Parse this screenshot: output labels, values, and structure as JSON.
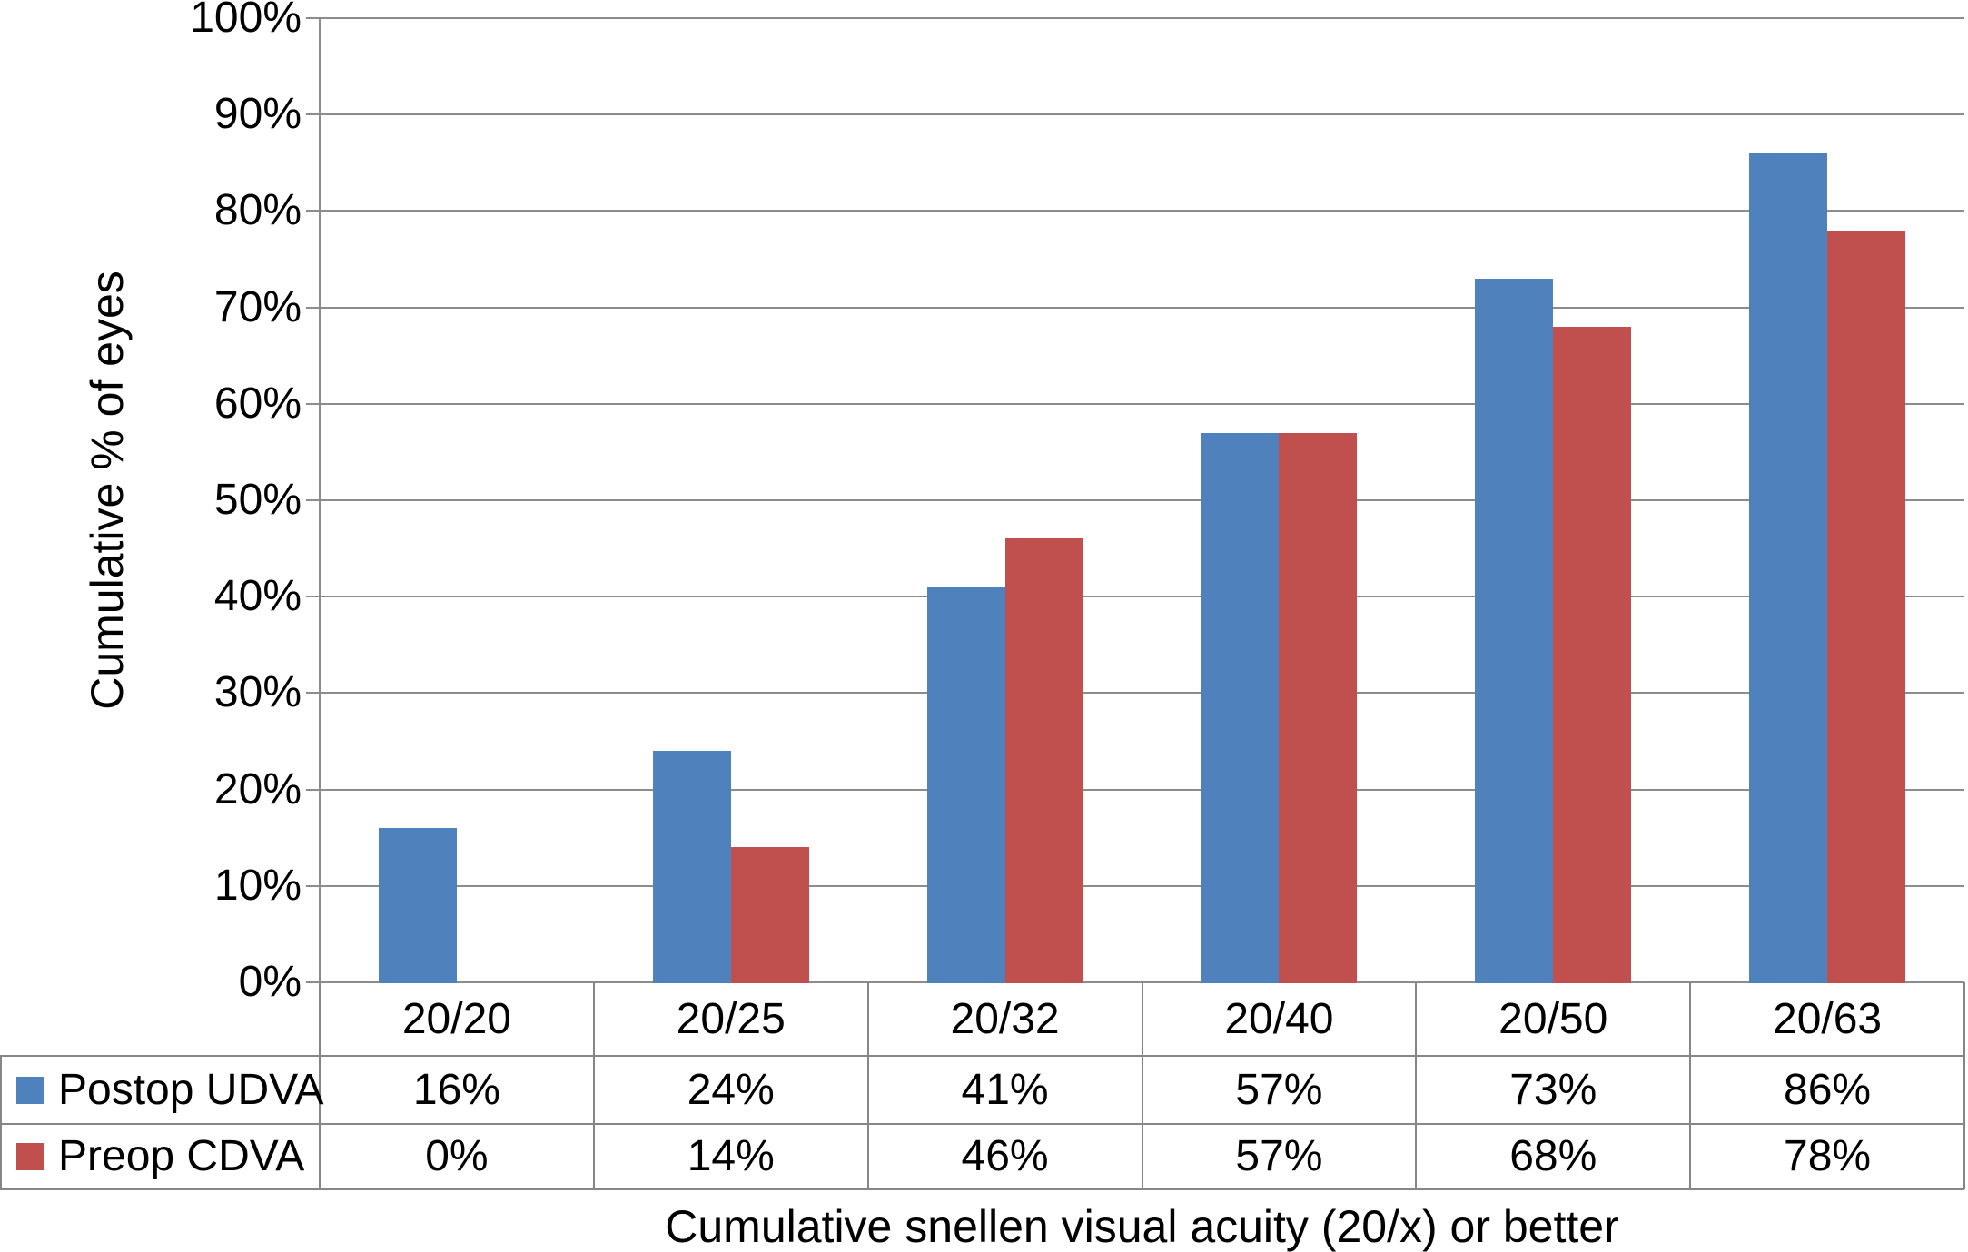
{
  "colors": {
    "background": "#FFFFFF",
    "text": "#000000",
    "gridline": "#8C8C8C",
    "axis_line": "#8C8C8C",
    "table_border": "#868686",
    "series_blue": "#4F81BD",
    "series_red": "#C0504D"
  },
  "chart_data": {
    "type": "bar",
    "title": "",
    "xlabel": "Cumulative snellen visual acuity (20/x) or better",
    "ylabel": "Cumulative % of eyes",
    "categories": [
      "20/20",
      "20/25",
      "20/32",
      "20/40",
      "20/50",
      "20/63"
    ],
    "series": [
      {
        "name": "Postop UDVA",
        "color": "#4F81BD",
        "values": [
          16,
          24,
          41,
          57,
          73,
          86
        ],
        "table_labels": [
          "16%",
          "24%",
          "41%",
          "57%",
          "73%",
          "86%"
        ]
      },
      {
        "name": "Preop CDVA",
        "color": "#C0504D",
        "values": [
          0,
          14,
          46,
          57,
          68,
          78
        ],
        "table_labels": [
          "0%",
          "14%",
          "46%",
          "57%",
          "68%",
          "78%"
        ]
      }
    ],
    "ylim": [
      0,
      100
    ],
    "ytick_step": 10,
    "ytick_labels": [
      "0%",
      "10%",
      "20%",
      "30%",
      "40%",
      "50%",
      "60%",
      "70%",
      "80%",
      "90%",
      "100%"
    ],
    "grid": true,
    "legend_position": "data table, left column",
    "bar_gap_style": "grouped, no overlap"
  }
}
